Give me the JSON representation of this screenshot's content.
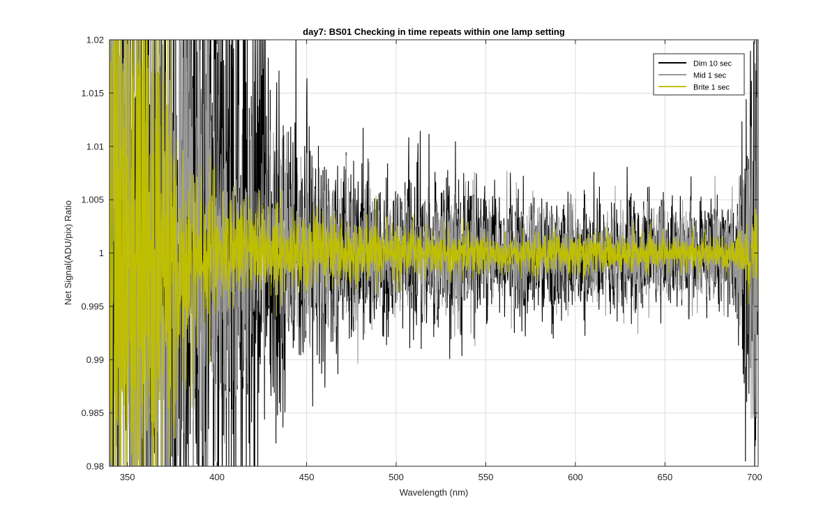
{
  "chart_data": {
    "type": "line",
    "title": "day7: BS01  Checking in time repeats within one lamp setting",
    "xlabel": "Wavelength (nm)",
    "ylabel": "Net Signal(ADU/pix) Ratio",
    "xlim": [
      340,
      702
    ],
    "ylim": [
      0.98,
      1.02
    ],
    "xticks": [
      350,
      400,
      450,
      500,
      550,
      600,
      650,
      700
    ],
    "yticks": [
      0.98,
      0.985,
      0.99,
      0.995,
      1,
      1.005,
      1.01,
      1.015,
      1.02
    ],
    "ytick_labels": [
      "0.98",
      "0.985",
      "0.99",
      "0.995",
      "1",
      "1.005",
      "1.01",
      "1.015",
      "1.02"
    ],
    "grid": true,
    "legend": {
      "location": "top-right",
      "entries": [
        "Dim 10 sec",
        "Mid 1 sec",
        "Brite 1 sec"
      ]
    },
    "series": [
      {
        "name": "Dim 10 sec",
        "color": "#000000",
        "x_range": [
          340,
          702
        ],
        "noise_amplitude_envelope": [
          {
            "x": 340,
            "amp": 0.06
          },
          {
            "x": 420,
            "amp": 0.03
          },
          {
            "x": 440,
            "amp": 0.016
          },
          {
            "x": 460,
            "amp": 0.012
          },
          {
            "x": 500,
            "amp": 0.009
          },
          {
            "x": 550,
            "amp": 0.0075
          },
          {
            "x": 600,
            "amp": 0.0065
          },
          {
            "x": 650,
            "amp": 0.006
          },
          {
            "x": 690,
            "amp": 0.006
          },
          {
            "x": 695,
            "amp": 0.02
          },
          {
            "x": 702,
            "amp": 0.03
          }
        ]
      },
      {
        "name": "Mid 1 sec",
        "color": "#999999",
        "x_range": [
          340,
          702
        ],
        "noise_amplitude_envelope": [
          {
            "x": 340,
            "amp": 0.06
          },
          {
            "x": 390,
            "amp": 0.03
          },
          {
            "x": 420,
            "amp": 0.012
          },
          {
            "x": 450,
            "amp": 0.009
          },
          {
            "x": 500,
            "amp": 0.007
          },
          {
            "x": 550,
            "amp": 0.006
          },
          {
            "x": 600,
            "amp": 0.0055
          },
          {
            "x": 650,
            "amp": 0.005
          },
          {
            "x": 690,
            "amp": 0.005
          },
          {
            "x": 695,
            "amp": 0.01
          },
          {
            "x": 702,
            "amp": 0.02
          }
        ]
      },
      {
        "name": "Brite 1 sec",
        "color": "#BFBF00",
        "x_range": [
          340,
          702
        ],
        "noise_amplitude_envelope": [
          {
            "x": 340,
            "amp": 0.06
          },
          {
            "x": 370,
            "amp": 0.025
          },
          {
            "x": 385,
            "amp": 0.01
          },
          {
            "x": 400,
            "amp": 0.006
          },
          {
            "x": 450,
            "amp": 0.004
          },
          {
            "x": 500,
            "amp": 0.003
          },
          {
            "x": 550,
            "amp": 0.0025
          },
          {
            "x": 600,
            "amp": 0.0022
          },
          {
            "x": 650,
            "amp": 0.002
          },
          {
            "x": 690,
            "amp": 0.002
          },
          {
            "x": 702,
            "amp": 0.005
          }
        ]
      }
    ]
  }
}
